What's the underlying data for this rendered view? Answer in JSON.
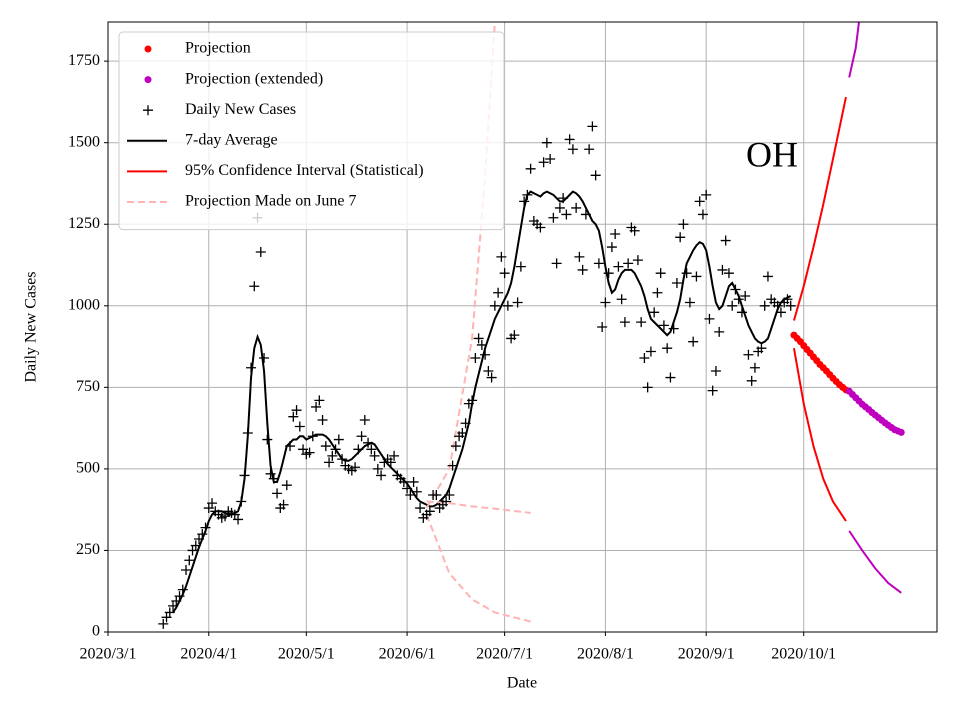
{
  "chart_data": {
    "type": "line",
    "annotation": "OH",
    "xlabel": "Date",
    "ylabel": "Daily New Cases",
    "grid": true,
    "legend": "upper left",
    "xlim": [
      "2020/3/1",
      "2020/11/11"
    ],
    "xticks": [
      "2020/3/1",
      "2020/4/1",
      "2020/5/1",
      "2020/6/1",
      "2020/7/1",
      "2020/8/1",
      "2020/9/1",
      "2020/10/1"
    ],
    "ylim": [
      0,
      1870
    ],
    "yticks": [
      0,
      250,
      500,
      750,
      1000,
      1250,
      1500,
      1750
    ],
    "x": [
      "2020/3/18",
      "2020/3/19",
      "2020/3/20",
      "2020/3/21",
      "2020/3/22",
      "2020/3/23",
      "2020/3/24",
      "2020/3/25",
      "2020/3/26",
      "2020/3/27",
      "2020/3/28",
      "2020/3/29",
      "2020/3/30",
      "2020/3/31",
      "2020/4/1",
      "2020/4/2",
      "2020/4/3",
      "2020/4/4",
      "2020/4/5",
      "2020/4/6",
      "2020/4/7",
      "2020/4/8",
      "2020/4/9",
      "2020/4/10",
      "2020/4/11",
      "2020/4/12",
      "2020/4/13",
      "2020/4/14",
      "2020/4/15",
      "2020/4/16",
      "2020/4/17",
      "2020/4/18",
      "2020/4/19",
      "2020/4/20",
      "2020/4/21",
      "2020/4/22",
      "2020/4/23",
      "2020/4/24",
      "2020/4/25",
      "2020/4/26",
      "2020/4/27",
      "2020/4/28",
      "2020/4/29",
      "2020/4/30",
      "2020/5/1",
      "2020/5/2",
      "2020/5/3",
      "2020/5/4",
      "2020/5/5",
      "2020/5/6",
      "2020/5/7",
      "2020/5/8",
      "2020/5/9",
      "2020/5/10",
      "2020/5/11",
      "2020/5/12",
      "2020/5/13",
      "2020/5/14",
      "2020/5/15",
      "2020/5/16",
      "2020/5/17",
      "2020/5/18",
      "2020/5/19",
      "2020/5/20",
      "2020/5/21",
      "2020/5/22",
      "2020/5/23",
      "2020/5/24",
      "2020/5/25",
      "2020/5/26",
      "2020/5/27",
      "2020/5/28",
      "2020/5/29",
      "2020/5/30",
      "2020/5/31",
      "2020/6/1",
      "2020/6/2",
      "2020/6/3",
      "2020/6/4",
      "2020/6/5",
      "2020/6/6",
      "2020/6/7",
      "2020/6/8",
      "2020/6/9",
      "2020/6/10",
      "2020/6/11",
      "2020/6/12",
      "2020/6/13",
      "2020/6/14",
      "2020/6/15",
      "2020/6/16",
      "2020/6/17",
      "2020/6/18",
      "2020/6/19",
      "2020/6/20",
      "2020/6/21",
      "2020/6/22",
      "2020/6/23",
      "2020/6/24",
      "2020/6/25",
      "2020/6/26",
      "2020/6/27",
      "2020/6/28",
      "2020/6/29",
      "2020/6/30",
      "2020/7/1",
      "2020/7/2",
      "2020/7/3",
      "2020/7/4",
      "2020/7/5",
      "2020/7/6",
      "2020/7/7",
      "2020/7/8",
      "2020/7/9",
      "2020/7/10",
      "2020/7/11",
      "2020/7/12",
      "2020/7/13",
      "2020/7/14",
      "2020/7/15",
      "2020/7/16",
      "2020/7/17",
      "2020/7/18",
      "2020/7/19",
      "2020/7/20",
      "2020/7/21",
      "2020/7/22",
      "2020/7/23",
      "2020/7/24",
      "2020/7/25",
      "2020/7/26",
      "2020/7/27",
      "2020/7/28",
      "2020/7/29",
      "2020/7/30",
      "2020/7/31",
      "2020/8/1",
      "2020/8/2",
      "2020/8/3",
      "2020/8/4",
      "2020/8/5",
      "2020/8/6",
      "2020/8/7",
      "2020/8/8",
      "2020/8/9",
      "2020/8/10",
      "2020/8/11",
      "2020/8/12",
      "2020/8/13",
      "2020/8/14",
      "2020/8/15",
      "2020/8/16",
      "2020/8/17",
      "2020/8/18",
      "2020/8/19",
      "2020/8/20",
      "2020/8/21",
      "2020/8/22",
      "2020/8/23",
      "2020/8/24",
      "2020/8/25",
      "2020/8/26",
      "2020/8/27",
      "2020/8/28",
      "2020/8/29",
      "2020/8/30",
      "2020/8/31",
      "2020/9/1",
      "2020/9/2",
      "2020/9/3",
      "2020/9/4",
      "2020/9/5",
      "2020/9/6",
      "2020/9/7",
      "2020/9/8",
      "2020/9/9",
      "2020/9/10",
      "2020/9/11",
      "2020/9/12",
      "2020/9/13",
      "2020/9/14",
      "2020/9/15",
      "2020/9/16",
      "2020/9/17",
      "2020/9/18",
      "2020/9/19",
      "2020/9/20",
      "2020/9/21",
      "2020/9/22",
      "2020/9/23",
      "2020/9/24",
      "2020/9/25",
      "2020/9/26",
      "2020/9/27"
    ],
    "series": [
      {
        "name": "Projection",
        "color": "#ff0000",
        "style": "dots",
        "x": [
          "2020/9/28",
          "2020/9/29",
          "2020/9/30",
          "2020/10/1",
          "2020/10/2",
          "2020/10/3",
          "2020/10/4",
          "2020/10/5",
          "2020/10/6",
          "2020/10/7",
          "2020/10/8",
          "2020/10/9",
          "2020/10/10",
          "2020/10/11",
          "2020/10/12",
          "2020/10/13",
          "2020/10/14"
        ],
        "values": [
          910,
          900,
          890,
          878,
          866,
          855,
          843,
          832,
          820,
          810,
          800,
          789,
          778,
          768,
          758,
          750,
          742
        ]
      },
      {
        "name": "Projection (extended)",
        "color": "#bf00bf",
        "style": "dots",
        "x": [
          "2020/10/15",
          "2020/10/16",
          "2020/10/17",
          "2020/10/18",
          "2020/10/19",
          "2020/10/20",
          "2020/10/21",
          "2020/10/22",
          "2020/10/23",
          "2020/10/24",
          "2020/10/25",
          "2020/10/26",
          "2020/10/27",
          "2020/10/28",
          "2020/10/29",
          "2020/10/30",
          "2020/10/31"
        ],
        "values": [
          738,
          728,
          718,
          708,
          698,
          690,
          682,
          673,
          665,
          657,
          649,
          641,
          634,
          627,
          620,
          616,
          612
        ]
      },
      {
        "name": "Daily New Cases",
        "color": "#000000",
        "style": "plus",
        "values": [
          25,
          45,
          60,
          80,
          95,
          110,
          130,
          190,
          220,
          250,
          265,
          285,
          300,
          320,
          380,
          395,
          370,
          360,
          350,
          355,
          370,
          365,
          360,
          345,
          400,
          480,
          610,
          810,
          1060,
          1270,
          1165,
          840,
          590,
          485,
          470,
          425,
          380,
          390,
          450,
          570,
          660,
          680,
          630,
          560,
          545,
          550,
          600,
          690,
          710,
          650,
          570,
          520,
          540,
          560,
          590,
          530,
          510,
          500,
          495,
          505,
          560,
          600,
          650,
          580,
          560,
          540,
          500,
          480,
          520,
          530,
          520,
          540,
          480,
          470,
          460,
          440,
          420,
          460,
          430,
          380,
          350,
          360,
          370,
          420,
          420,
          380,
          390,
          400,
          420,
          510,
          570,
          600,
          610,
          640,
          700,
          710,
          840,
          900,
          880,
          850,
          800,
          780,
          1000,
          1040,
          1150,
          1100,
          1000,
          900,
          910,
          1010,
          1120,
          1320,
          1340,
          1420,
          1260,
          1250,
          1240,
          1440,
          1500,
          1450,
          1270,
          1130,
          1300,
          1330,
          1280,
          1510,
          1480,
          1300,
          1150,
          1110,
          1280,
          1480,
          1550,
          1400,
          1130,
          935,
          1010,
          1100,
          1180,
          1220,
          1120,
          1020,
          950,
          1130,
          1240,
          1230,
          1140,
          950,
          840,
          750,
          860,
          980,
          1040,
          1100,
          940,
          870,
          780,
          930,
          1070,
          1210,
          1250,
          1100,
          1010,
          890,
          1090,
          1320,
          1280,
          1340,
          960,
          740,
          800,
          920,
          1110,
          1200,
          1100,
          1000,
          1050,
          1020,
          980,
          1030,
          850,
          770,
          810,
          860,
          870,
          1000,
          1090,
          1020,
          1010,
          1000,
          980,
          1010,
          1020,
          1000
        ]
      },
      {
        "name": "7-day Average",
        "color": "#000000",
        "style": "line",
        "values": [
          null,
          null,
          null,
          60,
          75,
          95,
          115,
          140,
          170,
          200,
          230,
          260,
          285,
          310,
          340,
          360,
          370,
          370,
          370,
          365,
          360,
          360,
          365,
          370,
          400,
          470,
          600,
          780,
          870,
          905,
          880,
          800,
          640,
          510,
          460,
          460,
          490,
          530,
          570,
          580,
          590,
          590,
          600,
          600,
          590,
          595,
          600,
          605,
          605,
          605,
          600,
          590,
          575,
          560,
          545,
          530,
          525,
          525,
          530,
          540,
          550,
          560,
          570,
          575,
          580,
          575,
          560,
          545,
          530,
          515,
          505,
          495,
          485,
          475,
          465,
          455,
          440,
          425,
          410,
          400,
          395,
          390,
          385,
          385,
          390,
          400,
          410,
          420,
          440,
          470,
          500,
          530,
          560,
          600,
          640,
          700,
          750,
          790,
          830,
          870,
          900,
          930,
          960,
          980,
          1000,
          1020,
          1040,
          1070,
          1120,
          1180,
          1240,
          1300,
          1340,
          1350,
          1345,
          1340,
          1335,
          1345,
          1350,
          1345,
          1340,
          1330,
          1320,
          1320,
          1330,
          1340,
          1350,
          1345,
          1335,
          1320,
          1300,
          1280,
          1260,
          1250,
          1230,
          1180,
          1120,
          1070,
          1040,
          1050,
          1080,
          1100,
          1110,
          1110,
          1110,
          1100,
          1080,
          1060,
          1030,
          990,
          960,
          950,
          940,
          930,
          920,
          910,
          920,
          950,
          980,
          1020,
          1080,
          1130,
          1150,
          1170,
          1185,
          1195,
          1190,
          1170,
          1120,
          1060,
          1010,
          990,
          1000,
          1030,
          1060,
          1070,
          1050,
          1030,
          1000,
          970,
          940,
          920,
          900,
          890,
          885,
          890,
          900,
          930,
          960,
          990,
          1010,
          1020,
          1025,
          1030
        ]
      },
      {
        "name": "95% Confidence Interval (Statistical)",
        "color": "#ff0000",
        "style": "line",
        "x": [
          "2020/9/28",
          "2020/10/1",
          "2020/10/4",
          "2020/10/7",
          "2020/10/10",
          "2020/10/14"
        ],
        "values": [
          955,
          1060,
          1180,
          1310,
          1450,
          1640
        ]
      },
      {
        "color": "#ff0000",
        "style": "line",
        "x": [
          "2020/9/28",
          "2020/10/1",
          "2020/10/4",
          "2020/10/7",
          "2020/10/10",
          "2020/10/14"
        ],
        "values": [
          870,
          700,
          570,
          470,
          400,
          340
        ]
      },
      {
        "color": "#bf00bf",
        "style": "line",
        "x": [
          "2020/10/15",
          "2020/10/17",
          "2020/10/18"
        ],
        "values": [
          1700,
          1790,
          1870
        ]
      },
      {
        "color": "#bf00bf",
        "style": "line",
        "x": [
          "2020/10/15",
          "2020/10/19",
          "2020/10/23",
          "2020/10/27",
          "2020/10/31"
        ],
        "values": [
          310,
          250,
          195,
          150,
          120
        ]
      },
      {
        "name": "Projection Made on June 7",
        "color": "#ffb3b3",
        "style": "dashed",
        "x": [
          "2020/6/7",
          "2020/6/14",
          "2020/6/21",
          "2020/6/28",
          "2020/7/9"
        ],
        "values": [
          400,
          395,
          385,
          378,
          365
        ]
      },
      {
        "color": "#ffb3b3",
        "style": "dashed",
        "x": [
          "2020/6/7",
          "2020/6/14",
          "2020/6/21",
          "2020/6/25",
          "2020/6/28"
        ],
        "values": [
          380,
          500,
          900,
          1400,
          1870
        ]
      },
      {
        "color": "#ffb3b3",
        "style": "dashed",
        "x": [
          "2020/6/7",
          "2020/6/14",
          "2020/6/21",
          "2020/6/28",
          "2020/7/9"
        ],
        "values": [
          360,
          180,
          100,
          60,
          32
        ]
      }
    ]
  }
}
